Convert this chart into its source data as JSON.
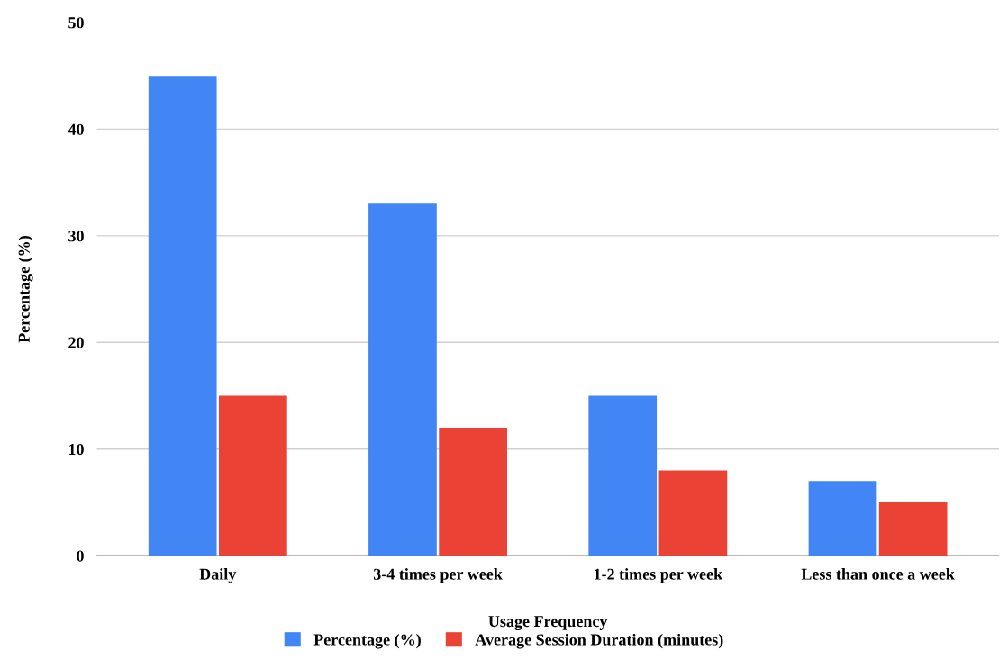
{
  "chart_data": {
    "type": "bar",
    "xlabel": "Usage Frequency",
    "ylabel": "Percentage (%)",
    "categories": [
      "Daily",
      "3-4 times per week",
      "1-2 times per week",
      "Less than once a week"
    ],
    "series": [
      {
        "name": "Percentage (%)",
        "color": "#4285f4",
        "values": [
          45,
          33,
          15,
          7
        ]
      },
      {
        "name": "Average Session Duration (minutes)",
        "color": "#ea4335",
        "values": [
          15,
          12,
          8,
          5
        ]
      }
    ],
    "ylim": [
      0,
      50
    ],
    "yticks": [
      0,
      10,
      20,
      30,
      40,
      50
    ],
    "grid": "y",
    "legend": "bottom"
  }
}
